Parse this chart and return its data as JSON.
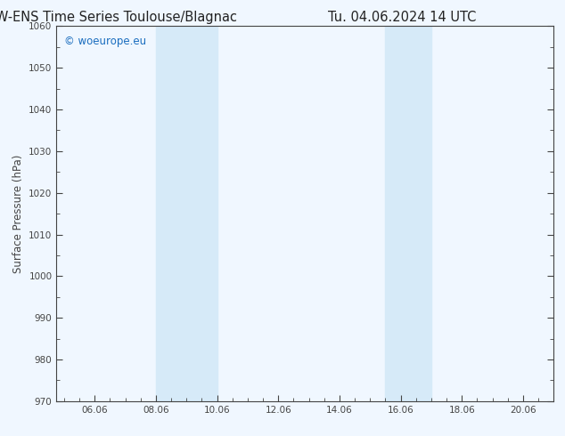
{
  "title_left": "ECMW-ENS Time Series Toulouse/Blagnac",
  "title_right": "Tu. 04.06.2024 14 UTC",
  "ylabel": "Surface Pressure (hPa)",
  "ylim": [
    970,
    1060
  ],
  "yticks": [
    970,
    980,
    990,
    1000,
    1010,
    1020,
    1030,
    1040,
    1050,
    1060
  ],
  "xlim_start": 4.75,
  "xlim_end": 21.0,
  "xticks": [
    6.0,
    8.0,
    10.0,
    12.0,
    14.0,
    16.0,
    18.0,
    20.0
  ],
  "xticklabels": [
    "06.06",
    "08.06",
    "10.06",
    "12.06",
    "14.06",
    "16.06",
    "18.06",
    "20.06"
  ],
  "shaded_bands": [
    {
      "x_start": 8.0,
      "x_end": 10.0
    },
    {
      "x_start": 15.5,
      "x_end": 17.0
    }
  ],
  "shade_color": "#d6eaf8",
  "background_color": "#f0f7ff",
  "plot_bg_color": "#f0f7ff",
  "watermark_text": "© woeurope.eu",
  "watermark_color": "#1a6dbf",
  "title_color": "#222222",
  "axis_color": "#444444",
  "tick_color": "#444444",
  "title_fontsize": 10.5,
  "ylabel_fontsize": 8.5,
  "tick_fontsize": 7.5,
  "watermark_fontsize": 8.5
}
